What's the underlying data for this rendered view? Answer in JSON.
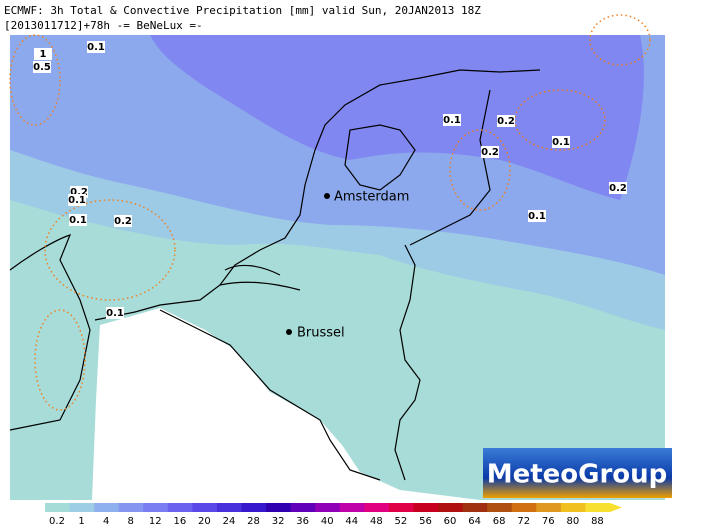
{
  "header": {
    "line1": "ECMWF: 3h Total & Convective Precipitation [mm] valid Sun, 20JAN2013 18Z",
    "line2": "[2013011712]+78h -= BeNeLux =-"
  },
  "cities": [
    "Amsterdam",
    "Brussel"
  ],
  "contour_labels": [
    "1",
    "0.5",
    "0.1",
    "0.2",
    "0.1",
    "0.1",
    "0.2",
    "0.1",
    "0.1",
    "0.2",
    "0.2",
    "0.1",
    "0.2",
    "0.1"
  ],
  "logo": "MeteoGroup",
  "colorbar": {
    "labels": [
      "0.2",
      "1",
      "4",
      "8",
      "12",
      "16",
      "20",
      "24",
      "28",
      "32",
      "36",
      "40",
      "44",
      "48",
      "52",
      "56",
      "60",
      "64",
      "68",
      "72",
      "76",
      "80",
      "88"
    ],
    "colors": [
      "#a6dcd8",
      "#9ecde6",
      "#8fb0ee",
      "#8696f0",
      "#7a7cf2",
      "#6c62f0",
      "#5a48e8",
      "#4830dc",
      "#3818cc",
      "#3000b0",
      "#6000b8",
      "#9000b8",
      "#c000a8",
      "#e00080",
      "#e00048",
      "#c80020",
      "#b01010",
      "#a03010",
      "#b05010",
      "#d07010",
      "#e09820",
      "#f0c020",
      "#f8e030"
    ]
  }
}
